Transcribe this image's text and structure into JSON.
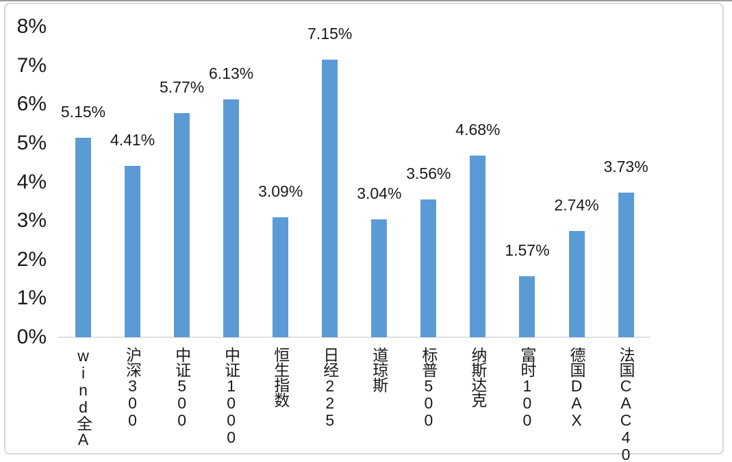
{
  "chart_data": {
    "type": "bar",
    "title": "",
    "xlabel": "",
    "ylabel": "",
    "categories": [
      "wind全A",
      "沪深300",
      "中证500",
      "中证1000",
      "恒生指数",
      "日经225",
      "道琼斯",
      "标普500",
      "纳斯达克",
      "富时100",
      "德国DAX",
      "法国CAC40"
    ],
    "values": [
      5.15,
      4.41,
      5.77,
      6.13,
      3.09,
      7.15,
      3.04,
      3.56,
      4.68,
      1.57,
      2.74,
      3.73
    ],
    "data_labels": [
      "5.15%",
      "4.41%",
      "5.77%",
      "6.13%",
      "3.09%",
      "7.15%",
      "3.04%",
      "3.56%",
      "4.68%",
      "1.57%",
      "2.74%",
      "3.73%"
    ],
    "y_ticks": [
      "0%",
      "1%",
      "2%",
      "3%",
      "4%",
      "5%",
      "6%",
      "7%",
      "8%"
    ],
    "ylim": [
      0,
      8
    ],
    "grid": "off",
    "legend": "none",
    "bar_color": "#5b9bd5",
    "axis_line_color": "#e0e0e0",
    "frame_border_color": "#d6d6d6",
    "text_color": "#1a1a1a",
    "background_color": "#ffffff"
  }
}
